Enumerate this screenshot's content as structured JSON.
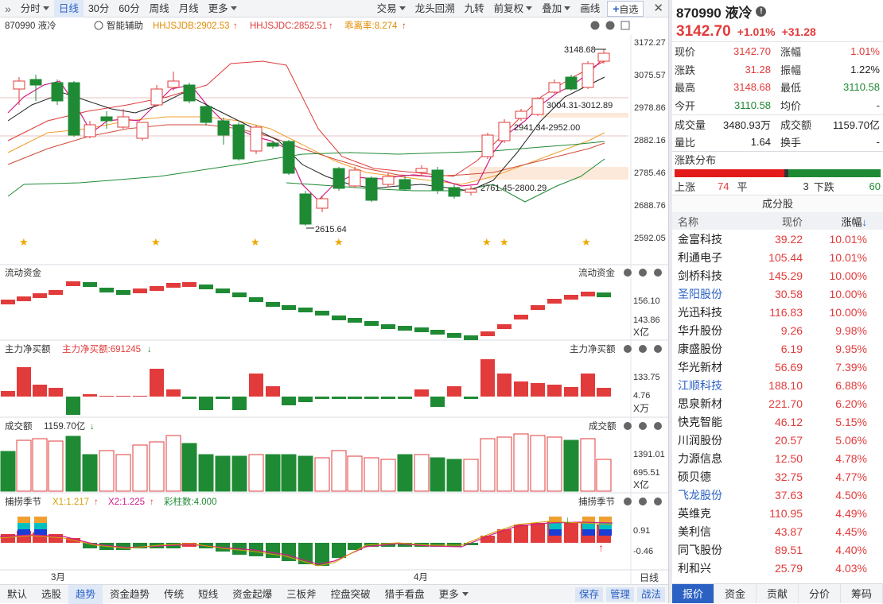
{
  "toolbar": {
    "left": [
      "分时",
      "日线",
      "30分",
      "60分",
      "周线",
      "月线",
      "更多"
    ],
    "right": [
      "交易",
      "龙头回溯",
      "九转",
      "前复权",
      "叠加",
      "画线"
    ],
    "add": "自选"
  },
  "chart": {
    "code_name": "870990 液冷",
    "assist": "智能辅助",
    "ind1": "HHJSJDB:2902.53",
    "ind2": "HHJSJDC:2852.51",
    "ind3": "乖离率:8.274",
    "price_axis": [
      "3172.27",
      "3075.57",
      "2978.86",
      "2882.16",
      "2785.46",
      "2688.76",
      "2592.05"
    ],
    "annotations": {
      "high": "3148.68",
      "low": "2615.64",
      "z1": "3004.31-3012.89",
      "z2": "2941.34-2952.00",
      "z3": "2761.45-2800.29"
    },
    "flow_title": "流动资金",
    "flow_axis": [
      "156.10",
      "143.86",
      "X亿"
    ],
    "main_title": "主力净买额",
    "main_value": "主力净买额:691245",
    "main_axis": [
      "133.75",
      "4.76",
      "X万"
    ],
    "vol_title": "成交额",
    "vol_value": "1159.70亿",
    "vol_axis": [
      "1391.01",
      "695.51",
      "X亿"
    ],
    "cap_title": "捕捞季节",
    "cap_x1": "X1:1.217",
    "cap_x2": "X2:1.225",
    "cap_cnt": "彩柱数:4.000",
    "cap_axis": [
      "0.91",
      "-0.46"
    ],
    "months": [
      "3月",
      "4月"
    ],
    "period": "日线"
  },
  "bottom": {
    "tabs": [
      "默认",
      "选股",
      "趋势",
      "资金趋势",
      "传统",
      "短线",
      "资金起爆",
      "三板斧",
      "控盘突破",
      "猎手看盘",
      "更多"
    ],
    "buttons": [
      "保存",
      "管理",
      "战法"
    ]
  },
  "stock": {
    "code": "870990 液冷",
    "price": "3142.70",
    "pct": "+1.01%",
    "chg": "+31.28"
  },
  "quote": [
    {
      "k": "现价",
      "v": "3142.70",
      "k2": "涨幅",
      "v2": "1.01%"
    },
    {
      "k": "涨跌",
      "v": "31.28",
      "k2": "振幅",
      "v2": "1.22%"
    },
    {
      "k": "最高",
      "v": "3148.68",
      "k2": "最低",
      "v2": "3110.58"
    },
    {
      "k": "今开",
      "v": "3110.58",
      "k2": "均价",
      "v2": "-"
    }
  ],
  "quote2": [
    {
      "k": "成交量",
      "v": "3480.93万",
      "k2": "成交额",
      "v2": "1159.70亿"
    },
    {
      "k": "量比",
      "v": "1.64",
      "k2": "换手",
      "v2": "-"
    }
  ],
  "dist": {
    "title": "涨跌分布",
    "up_label": "上涨",
    "up": "74",
    "flat_label": "平",
    "flat": "3",
    "down_label": "下跌",
    "down": "60"
  },
  "components": {
    "title": "成分股",
    "headers": [
      "名称",
      "现价",
      "涨幅"
    ],
    "rows": [
      {
        "name": "金富科技",
        "price": "39.22",
        "pct": "10.01%"
      },
      {
        "name": "利通电子",
        "price": "105.44",
        "pct": "10.01%"
      },
      {
        "name": "剑桥科技",
        "price": "145.29",
        "pct": "10.00%"
      },
      {
        "name": "圣阳股份",
        "price": "30.58",
        "pct": "10.00%"
      },
      {
        "name": "光迅科技",
        "price": "116.83",
        "pct": "10.00%"
      },
      {
        "name": "华升股份",
        "price": "9.26",
        "pct": "9.98%"
      },
      {
        "name": "康盛股份",
        "price": "6.19",
        "pct": "9.95%"
      },
      {
        "name": "华光新材",
        "price": "56.69",
        "pct": "7.39%"
      },
      {
        "name": "江顺科技",
        "price": "188.10",
        "pct": "6.88%"
      },
      {
        "name": "思泉新材",
        "price": "221.70",
        "pct": "6.20%"
      },
      {
        "name": "快克智能",
        "price": "46.12",
        "pct": "5.15%"
      },
      {
        "name": "川润股份",
        "price": "20.57",
        "pct": "5.06%"
      },
      {
        "name": "力源信息",
        "price": "12.50",
        "pct": "4.78%"
      },
      {
        "name": "硕贝德",
        "price": "32.75",
        "pct": "4.77%"
      },
      {
        "name": "飞龙股份",
        "price": "37.63",
        "pct": "4.50%"
      },
      {
        "name": "英维克",
        "price": "110.95",
        "pct": "4.49%"
      },
      {
        "name": "美利信",
        "price": "43.87",
        "pct": "4.45%"
      },
      {
        "name": "同飞股份",
        "price": "89.51",
        "pct": "4.40%"
      },
      {
        "name": "利和兴",
        "price": "25.79",
        "pct": "4.03%"
      }
    ]
  },
  "right_tabs": [
    "报价",
    "资金",
    "贡献",
    "分价",
    "筹码"
  ],
  "colors": {
    "up": "#e23b3b",
    "down": "#1f8a34",
    "accent": "#2c61c4"
  }
}
